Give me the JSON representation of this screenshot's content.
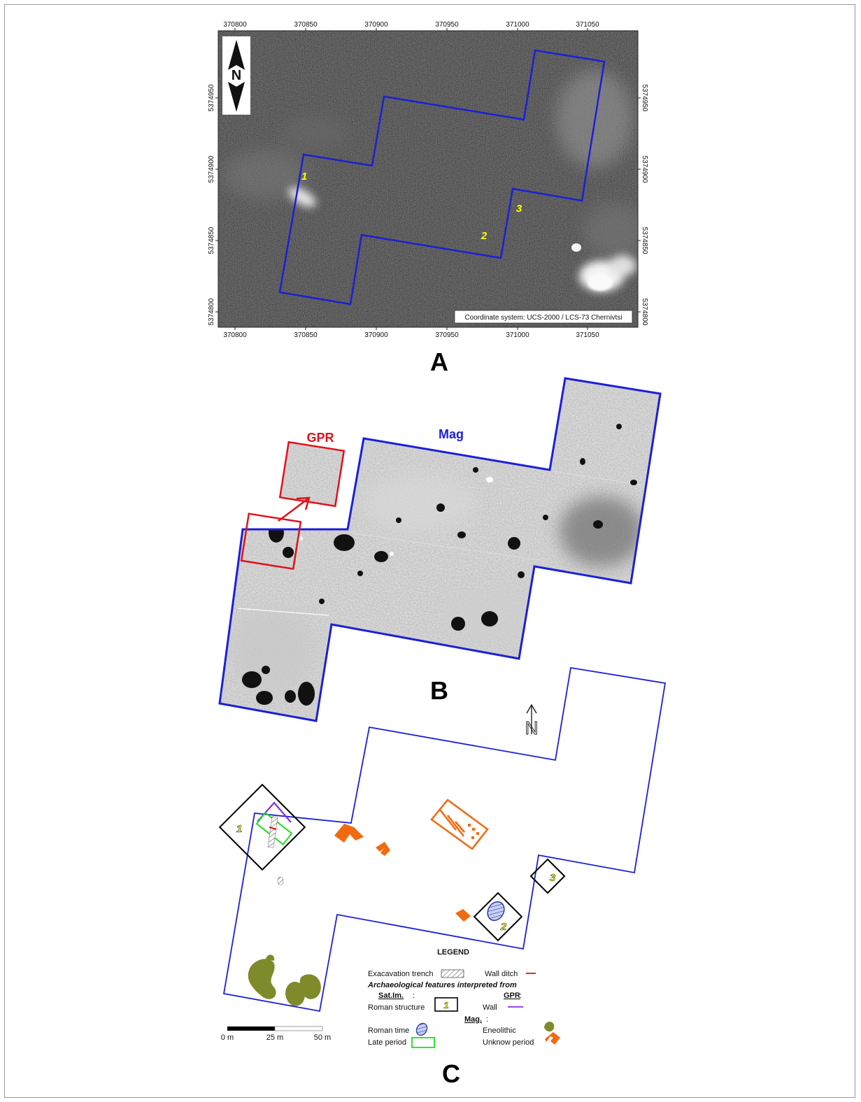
{
  "panel_a": {
    "letter": "A",
    "coordinate_note": "Coordinate system: UCS-2000 / LCS-73 Chernivtsi",
    "x_ticks": [
      "370800",
      "370850",
      "370900",
      "370950",
      "371000",
      "371050"
    ],
    "y_ticks": [
      "5374950",
      "5374900",
      "5374850",
      "5374800"
    ],
    "north_label": "N",
    "site_labels": [
      "1",
      "2",
      "3"
    ]
  },
  "panel_b": {
    "letter": "B",
    "gpr_label": "GPR",
    "mag_label": "Mag"
  },
  "panel_c": {
    "letter": "C",
    "north_label": "N",
    "site_labels": [
      "1",
      "2",
      "3"
    ],
    "scale": {
      "labels": [
        "0 m",
        "25 m",
        "50 m"
      ]
    },
    "legend": {
      "title": "LEGEND",
      "excavation_trench": "Exacavation trench",
      "wall_ditch": "Wall ditch",
      "heading": "Archaeological features interpreted from",
      "sat_heading": "Sat.Im.",
      "sat_colon": ":",
      "roman_structure": "Roman structure",
      "roman_structure_number": "1",
      "gpr_heading": "GPR",
      "gpr_colon": ":",
      "wall": "Wall",
      "mag_heading": "Mag.",
      "mag_colon": ":",
      "roman_time": "Roman time",
      "eneolithic": "Eneolithic",
      "late_period": "Late period",
      "unknow_period": "Unknow period"
    }
  },
  "colors": {
    "survey_outline": "#1c1fd6",
    "gpr": "#e0121a",
    "site_label": "#ffff00",
    "roman_structure": "#000000",
    "wall": "#8a2be2",
    "late_period": "#22dd22",
    "roman_time": "#3344aa",
    "eneolithic": "#7f8a2a",
    "unknown_period": "#f06a10"
  }
}
